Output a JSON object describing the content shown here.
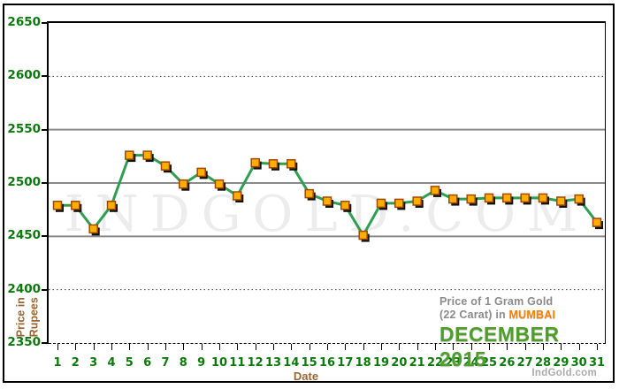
{
  "colors": {
    "line": "#2e9e50",
    "marker_fill": "#ffad00",
    "marker_border": "#a04800",
    "marker_shadow": "#101010",
    "grid_solid": "#8a8a8a",
    "grid_dotted": "#3c3c3c",
    "axis_label_green": "#0a7a0a",
    "axis_title_brown": "#996633",
    "annotation_gray": "#8a8a8a",
    "mumbai_orange": "#ff7e00",
    "month_green": "#4e9e2a",
    "watermark_gray": "#ececec",
    "brand_gray": "#ababab"
  },
  "chart_data": {
    "type": "line",
    "title": "Price of 1 Gram Gold (22 Carat) in MUMBAI - DECEMBER 2015",
    "xlabel": "Date",
    "ylabel": "Price in Rupees",
    "ylim": [
      2350,
      2650
    ],
    "yticks": [
      2650,
      2600,
      2550,
      2500,
      2450,
      2400,
      2350
    ],
    "gridlines": [
      {
        "value": 2600,
        "style": "dotted"
      },
      {
        "value": 2550,
        "style": "solid"
      },
      {
        "value": 2500,
        "style": "solid"
      },
      {
        "value": 2450,
        "style": "solid"
      },
      {
        "value": 2400,
        "style": "dotted"
      }
    ],
    "grid": true,
    "legend_position": "none",
    "categories": [
      "1",
      "2",
      "3",
      "4",
      "5",
      "6",
      "7",
      "8",
      "9",
      "10",
      "11",
      "12",
      "13",
      "14",
      "15",
      "16",
      "17",
      "18",
      "19",
      "20",
      "21",
      "22",
      "23",
      "24",
      "25",
      "26",
      "27",
      "28",
      "29",
      "30",
      "31"
    ],
    "values": [
      2479,
      2479,
      2457,
      2479,
      2526,
      2526,
      2516,
      2499,
      2510,
      2499,
      2488,
      2519,
      2518,
      2518,
      2490,
      2483,
      2479,
      2451,
      2481,
      2481,
      2483,
      2493,
      2485,
      2485,
      2486,
      2486,
      2486,
      2486,
      2483,
      2485,
      2463
    ]
  },
  "ylabel": {
    "line1": "Price in",
    "line2": "Rupees"
  },
  "xlabel": "Date",
  "annotation": {
    "line1": "Price of 1 Gram Gold",
    "line2_prefix": "(22 Carat) in",
    "line2_highlight": "MUMBAI",
    "line3": "DECEMBER 2015"
  },
  "watermark": "INDGOLD.COM",
  "brand": "IndGold.com"
}
